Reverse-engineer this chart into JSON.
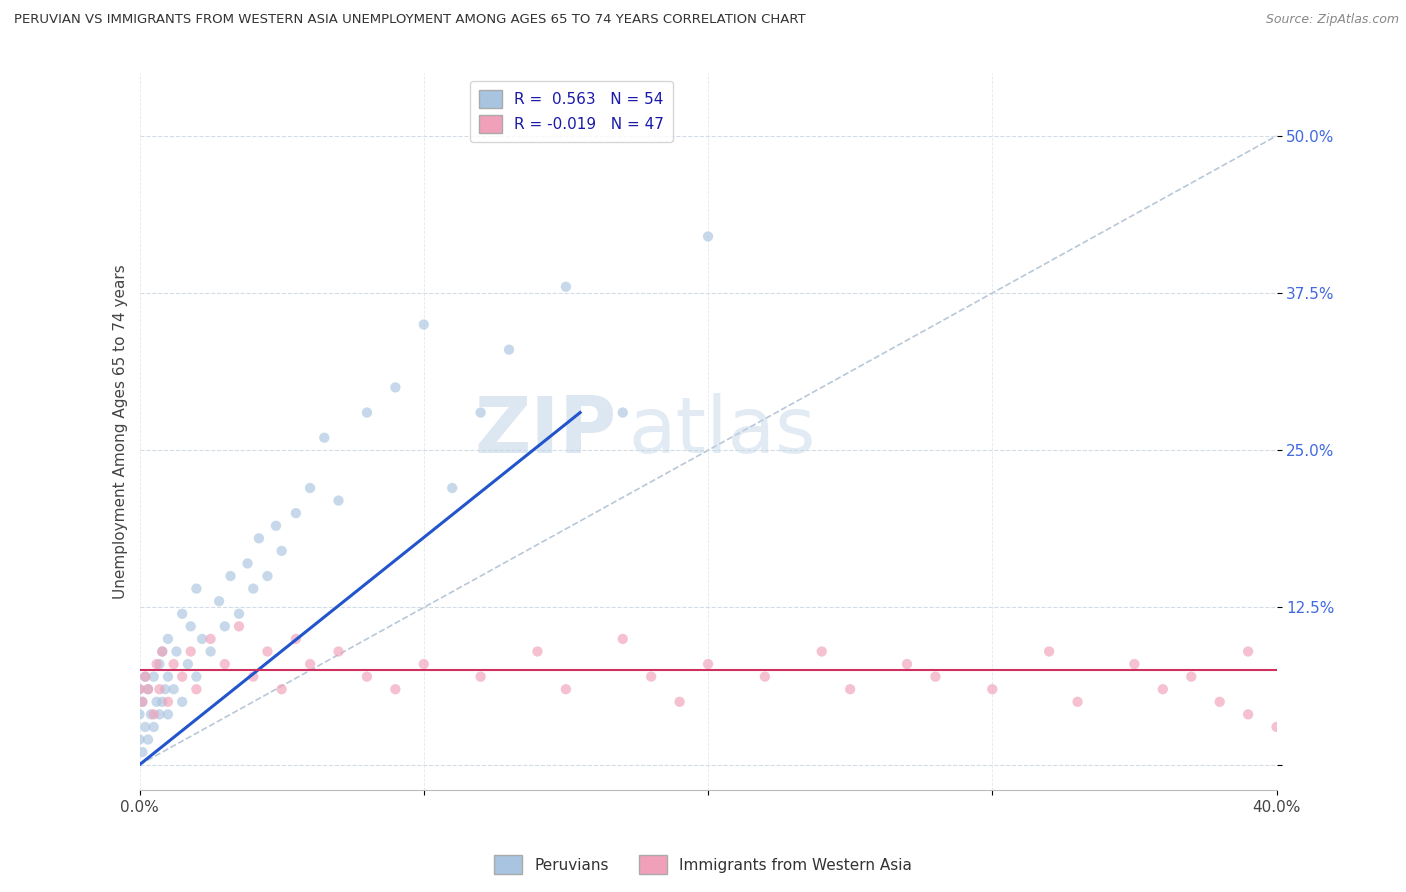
{
  "title": "PERUVIAN VS IMMIGRANTS FROM WESTERN ASIA UNEMPLOYMENT AMONG AGES 65 TO 74 YEARS CORRELATION CHART",
  "source": "Source: ZipAtlas.com",
  "ylabel": "Unemployment Among Ages 65 to 74 years",
  "xlim": [
    0.0,
    0.4
  ],
  "ylim": [
    -0.02,
    0.55
  ],
  "xticks": [
    0.0,
    0.1,
    0.2,
    0.3,
    0.4
  ],
  "xtick_labels": [
    "0.0%",
    "",
    "",
    "",
    "40.0%"
  ],
  "ytick_labels_right": [
    "50.0%",
    "37.5%",
    "25.0%",
    "12.5%",
    ""
  ],
  "yticks_right": [
    0.5,
    0.375,
    0.25,
    0.125,
    0.0
  ],
  "blue_R": 0.563,
  "blue_N": 54,
  "pink_R": -0.019,
  "pink_N": 47,
  "blue_color": "#a8c4e0",
  "pink_color": "#f0a0b8",
  "blue_line_color": "#2255cc",
  "pink_line_color": "#d03060",
  "scatter_alpha": 0.65,
  "scatter_size": 55,
  "watermark_part1": "ZIP",
  "watermark_part2": "atlas",
  "watermark_color1": "#b8cfe8",
  "watermark_color2": "#b8cfe8",
  "legend_labels": [
    "Peruvians",
    "Immigrants from Western Asia"
  ],
  "blue_scatter_x": [
    0.0,
    0.0,
    0.0,
    0.001,
    0.001,
    0.002,
    0.002,
    0.003,
    0.003,
    0.004,
    0.005,
    0.005,
    0.006,
    0.007,
    0.007,
    0.008,
    0.008,
    0.009,
    0.01,
    0.01,
    0.01,
    0.012,
    0.013,
    0.015,
    0.015,
    0.017,
    0.018,
    0.02,
    0.02,
    0.022,
    0.025,
    0.028,
    0.03,
    0.032,
    0.035,
    0.038,
    0.04,
    0.042,
    0.045,
    0.048,
    0.05,
    0.055,
    0.06,
    0.065,
    0.07,
    0.08,
    0.09,
    0.1,
    0.11,
    0.12,
    0.13,
    0.15,
    0.17,
    0.2
  ],
  "blue_scatter_y": [
    0.02,
    0.04,
    0.06,
    0.01,
    0.05,
    0.03,
    0.07,
    0.02,
    0.06,
    0.04,
    0.03,
    0.07,
    0.05,
    0.04,
    0.08,
    0.05,
    0.09,
    0.06,
    0.04,
    0.07,
    0.1,
    0.06,
    0.09,
    0.05,
    0.12,
    0.08,
    0.11,
    0.07,
    0.14,
    0.1,
    0.09,
    0.13,
    0.11,
    0.15,
    0.12,
    0.16,
    0.14,
    0.18,
    0.15,
    0.19,
    0.17,
    0.2,
    0.22,
    0.26,
    0.21,
    0.28,
    0.3,
    0.35,
    0.22,
    0.28,
    0.33,
    0.38,
    0.28,
    0.42
  ],
  "pink_scatter_x": [
    0.0,
    0.001,
    0.002,
    0.003,
    0.005,
    0.006,
    0.007,
    0.008,
    0.01,
    0.012,
    0.015,
    0.018,
    0.02,
    0.025,
    0.03,
    0.035,
    0.04,
    0.045,
    0.05,
    0.055,
    0.06,
    0.07,
    0.08,
    0.09,
    0.1,
    0.12,
    0.14,
    0.15,
    0.17,
    0.18,
    0.19,
    0.2,
    0.22,
    0.24,
    0.25,
    0.27,
    0.28,
    0.3,
    0.32,
    0.33,
    0.35,
    0.36,
    0.37,
    0.38,
    0.39,
    0.39,
    0.4
  ],
  "pink_scatter_y": [
    0.06,
    0.05,
    0.07,
    0.06,
    0.04,
    0.08,
    0.06,
    0.09,
    0.05,
    0.08,
    0.07,
    0.09,
    0.06,
    0.1,
    0.08,
    0.11,
    0.07,
    0.09,
    0.06,
    0.1,
    0.08,
    0.09,
    0.07,
    0.06,
    0.08,
    0.07,
    0.09,
    0.06,
    0.1,
    0.07,
    0.05,
    0.08,
    0.07,
    0.09,
    0.06,
    0.08,
    0.07,
    0.06,
    0.09,
    0.05,
    0.08,
    0.06,
    0.07,
    0.05,
    0.09,
    0.04,
    0.03
  ],
  "blue_line_x": [
    0.0,
    0.155
  ],
  "blue_line_y": [
    0.0,
    0.28
  ],
  "pink_line_y": 0.075,
  "ref_line_x": [
    0.0,
    0.4
  ],
  "ref_line_y": [
    0.0,
    0.5
  ]
}
